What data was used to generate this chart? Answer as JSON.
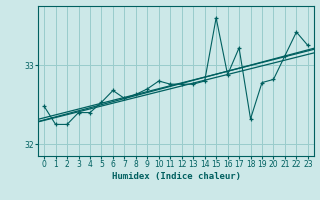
{
  "xlabel": "Humidex (Indice chaleur)",
  "bg_color": "#cce8e8",
  "grid_color": "#99cccc",
  "line_color": "#006060",
  "xlim": [
    -0.5,
    23.5
  ],
  "ylim": [
    31.85,
    33.75
  ],
  "yticks": [
    32,
    33
  ],
  "xticks": [
    0,
    1,
    2,
    3,
    4,
    5,
    6,
    7,
    8,
    9,
    10,
    11,
    12,
    13,
    14,
    15,
    16,
    17,
    18,
    19,
    20,
    21,
    22,
    23
  ],
  "x": [
    0,
    1,
    2,
    3,
    4,
    5,
    6,
    7,
    8,
    9,
    10,
    11,
    12,
    13,
    14,
    15,
    16,
    17,
    18,
    19,
    20,
    21,
    22,
    23
  ],
  "y": [
    32.48,
    32.25,
    32.25,
    32.4,
    32.4,
    32.53,
    32.68,
    32.58,
    32.63,
    32.7,
    32.8,
    32.76,
    32.76,
    32.76,
    32.8,
    33.6,
    32.88,
    33.22,
    32.32,
    32.78,
    32.82,
    33.12,
    33.42,
    33.25
  ]
}
